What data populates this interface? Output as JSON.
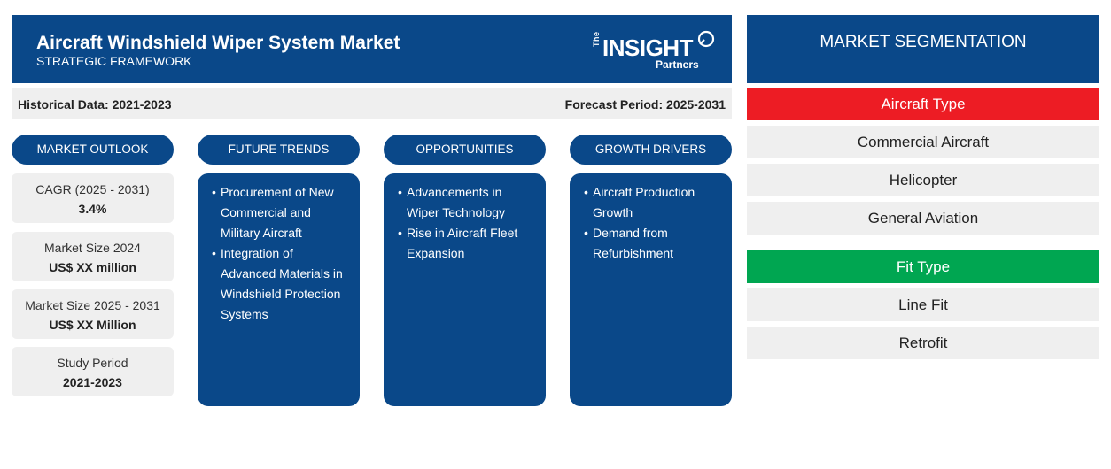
{
  "header": {
    "title": "Aircraft Windshield Wiper System Market",
    "subtitle": "STRATEGIC FRAMEWORK",
    "logo": {
      "the": "The",
      "insight": "INSIGHT",
      "partners": "Partners"
    }
  },
  "period": {
    "historical": "Historical Data: 2021-2023",
    "forecast": "Forecast Period: 2025-2031"
  },
  "columns": {
    "market_outlook": "MARKET OUTLOOK",
    "future_trends": "FUTURE TRENDS",
    "opportunities": "OPPORTUNITIES",
    "growth_drivers": "GROWTH DRIVERS"
  },
  "outlook": [
    {
      "label": "CAGR (2025 - 2031)",
      "value": "3.4%"
    },
    {
      "label": "Market Size 2024",
      "value": "US$ XX million"
    },
    {
      "label": "Market Size 2025 - 2031",
      "value": "US$ XX Million"
    },
    {
      "label": "Study Period",
      "value": "2021-2023"
    }
  ],
  "future_trends": [
    "Procurement of New Commercial and Military Aircraft",
    "Integration of Advanced Materials in Windshield Protection Systems"
  ],
  "opportunities": [
    "Advancements in Wiper Technology",
    "Rise in Aircraft Fleet Expansion"
  ],
  "growth_drivers": [
    "Aircraft Production Growth",
    "Demand from Refurbishment"
  ],
  "segmentation": {
    "title": "MARKET SEGMENTATION",
    "groups": [
      {
        "name": "Aircraft Type",
        "color": "#ed1c24",
        "items": [
          "Commercial Aircraft",
          "Helicopter",
          "General Aviation"
        ]
      },
      {
        "name": "Fit Type",
        "color": "#00a651",
        "items": [
          "Line Fit",
          "Retrofit"
        ]
      }
    ]
  },
  "colors": {
    "brand_blue": "#0a4889",
    "panel_gray": "#efefef"
  }
}
